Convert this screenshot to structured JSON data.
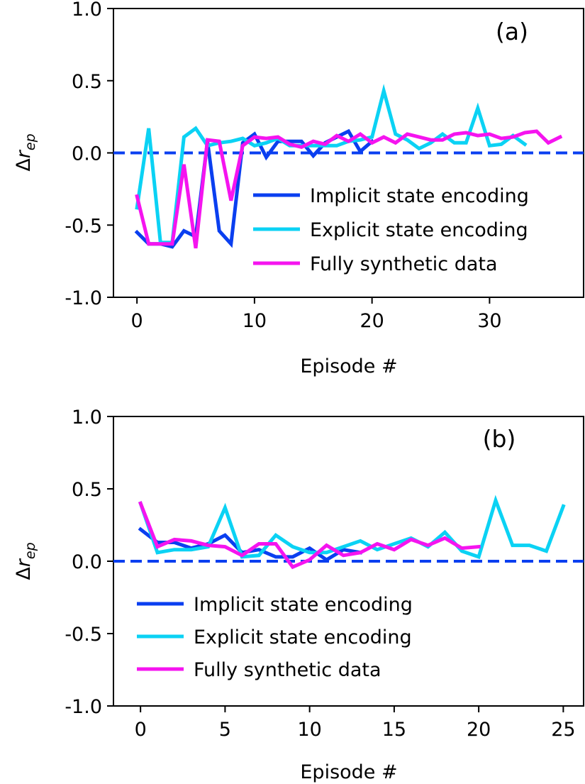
{
  "colors": {
    "implicit": "#0a3ff0",
    "explicit": "#0bd2f4",
    "synthetic": "#f514ef",
    "zero_line": "#0a3ff0"
  },
  "chart_data": [
    {
      "type": "line",
      "panel_label": "(a)",
      "xlabel": "Episode #",
      "ylabel": "Δr_ep",
      "xlim": [
        -2,
        38
      ],
      "ylim": [
        -1.0,
        1.0
      ],
      "x_ticks": [
        0,
        10,
        20,
        30
      ],
      "y_ticks": [
        1.0,
        0.5,
        0.0,
        -0.5,
        -1.0
      ],
      "x_tick_labels": [
        "0",
        "10",
        "20",
        "30"
      ],
      "y_tick_labels": [
        "1.0",
        "0.5",
        "0.0",
        "-0.5",
        "-1.0"
      ],
      "reference_line": 0.0,
      "legend_position": "center-right",
      "series": [
        {
          "name": "Implicit state encoding",
          "color_key": "implicit",
          "x": [
            0,
            1,
            2,
            3,
            4,
            5,
            6,
            7,
            8,
            9,
            10,
            11,
            12,
            13,
            14,
            15,
            16,
            17,
            18,
            19,
            20
          ],
          "y": [
            -0.55,
            -0.63,
            -0.63,
            -0.65,
            -0.54,
            -0.58,
            0.08,
            -0.54,
            -0.63,
            0.07,
            0.13,
            -0.03,
            0.08,
            0.08,
            0.08,
            -0.02,
            0.07,
            0.11,
            0.15,
            0.01,
            0.08
          ]
        },
        {
          "name": "Explicit state encoding",
          "color_key": "explicit",
          "x": [
            0,
            1,
            2,
            3,
            4,
            5,
            6,
            7,
            8,
            9,
            10,
            11,
            12,
            13,
            14,
            15,
            16,
            17,
            18,
            19,
            20,
            21,
            22,
            23,
            24,
            25,
            26,
            27,
            28,
            29,
            30,
            31,
            32,
            33
          ],
          "y": [
            -0.38,
            0.17,
            -0.62,
            -0.62,
            0.11,
            0.17,
            0.05,
            0.07,
            0.08,
            0.1,
            0.05,
            0.07,
            0.1,
            0.05,
            0.05,
            0.05,
            0.05,
            0.05,
            0.08,
            0.09,
            0.11,
            0.43,
            0.13,
            0.09,
            0.03,
            0.07,
            0.13,
            0.07,
            0.07,
            0.31,
            0.05,
            0.06,
            0.12,
            0.06
          ]
        },
        {
          "name": "Fully synthetic data",
          "color_key": "synthetic",
          "x": [
            0,
            1,
            2,
            3,
            4,
            5,
            6,
            7,
            8,
            9,
            10,
            11,
            12,
            13,
            14,
            15,
            16,
            17,
            18,
            19,
            20,
            21,
            22,
            23,
            24,
            25,
            26,
            27,
            28,
            29,
            30,
            31,
            32,
            33,
            34,
            35,
            36
          ],
          "y": [
            -0.3,
            -0.63,
            -0.63,
            -0.63,
            -0.08,
            -0.66,
            0.09,
            0.08,
            -0.33,
            0.05,
            0.11,
            0.1,
            0.11,
            0.06,
            0.04,
            0.08,
            0.06,
            0.12,
            0.08,
            0.13,
            0.07,
            0.11,
            0.07,
            0.13,
            0.11,
            0.09,
            0.09,
            0.13,
            0.14,
            0.12,
            0.13,
            0.1,
            0.11,
            0.14,
            0.15,
            0.07,
            0.11
          ]
        }
      ]
    },
    {
      "type": "line",
      "panel_label": "(b)",
      "xlabel": "Episode #",
      "ylabel": "Δr_ep",
      "xlim": [
        -1.6,
        26.2
      ],
      "ylim": [
        -1.0,
        1.0
      ],
      "x_ticks": [
        0,
        5,
        10,
        15,
        20,
        25
      ],
      "y_ticks": [
        1.0,
        0.5,
        0.0,
        -0.5,
        -1.0
      ],
      "x_tick_labels": [
        "0",
        "5",
        "10",
        "15",
        "20",
        "25"
      ],
      "y_tick_labels": [
        "1.0",
        "0.5",
        "0.0",
        "-0.5",
        "-1.0"
      ],
      "reference_line": 0.0,
      "legend_position": "lower-left",
      "series": [
        {
          "name": "Implicit state encoding",
          "color_key": "implicit",
          "x": [
            0,
            1,
            2,
            3,
            4,
            5,
            6,
            7,
            8,
            9,
            10,
            11,
            12,
            13
          ],
          "y": [
            0.22,
            0.13,
            0.13,
            0.09,
            0.12,
            0.18,
            0.06,
            0.08,
            0.03,
            0.03,
            0.09,
            0.01,
            0.08,
            0.06
          ]
        },
        {
          "name": "Explicit state encoding",
          "color_key": "explicit",
          "x": [
            0,
            1,
            2,
            3,
            4,
            5,
            6,
            7,
            8,
            9,
            10,
            11,
            12,
            13,
            14,
            15,
            16,
            17,
            18,
            19,
            20,
            21,
            22,
            23,
            24,
            25
          ],
          "y": [
            0.4,
            0.06,
            0.08,
            0.08,
            0.1,
            0.37,
            0.03,
            0.04,
            0.18,
            0.1,
            0.06,
            0.06,
            0.1,
            0.14,
            0.08,
            0.12,
            0.16,
            0.1,
            0.2,
            0.07,
            0.03,
            0.42,
            0.11,
            0.11,
            0.07,
            0.38
          ]
        },
        {
          "name": "Fully synthetic data",
          "color_key": "synthetic",
          "x": [
            0,
            1,
            2,
            3,
            4,
            5,
            6,
            7,
            8,
            9,
            10,
            11,
            12,
            13,
            14,
            15,
            16,
            17,
            18,
            19,
            20
          ],
          "y": [
            0.4,
            0.1,
            0.15,
            0.14,
            0.11,
            0.1,
            0.04,
            0.12,
            0.12,
            -0.04,
            0.01,
            0.11,
            0.04,
            0.06,
            0.12,
            0.08,
            0.15,
            0.11,
            0.16,
            0.09,
            0.1
          ]
        }
      ]
    }
  ]
}
